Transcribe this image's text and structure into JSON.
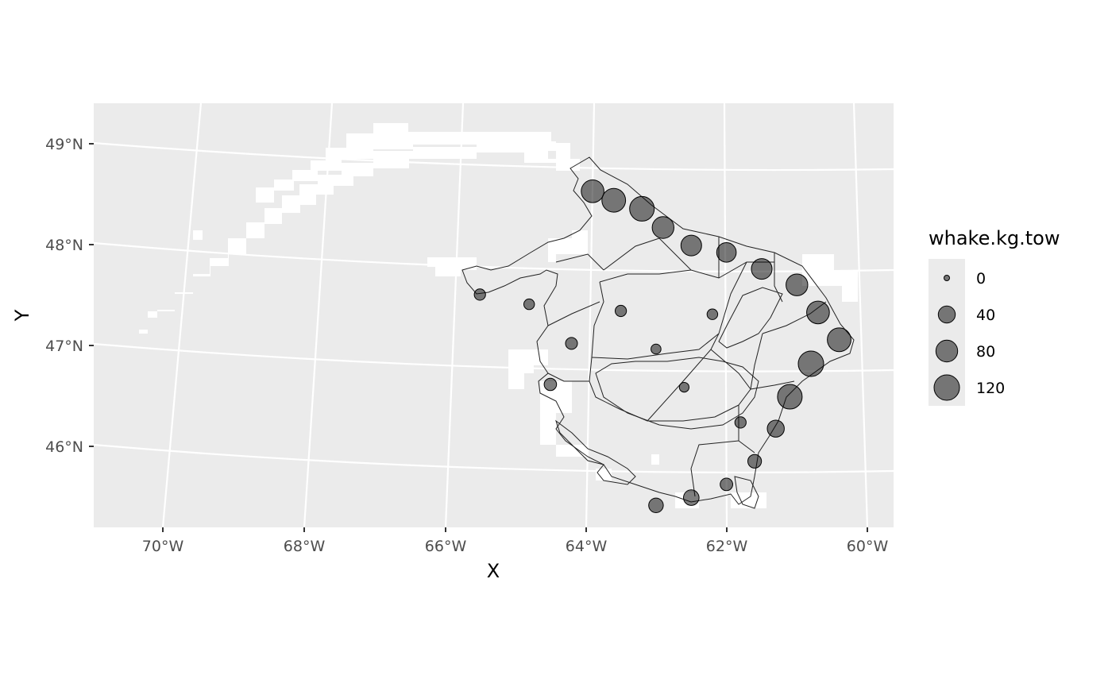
{
  "map": {
    "xlabel": "X",
    "ylabel": "Y",
    "x_ticks": [
      "70°W",
      "68°W",
      "66°W",
      "64°W",
      "62°W",
      "60°W"
    ],
    "y_ticks": [
      "49°N",
      "48°N",
      "47°N",
      "46°N"
    ],
    "lon_range": [
      -71,
      -59.6
    ],
    "lat_range": [
      45.3,
      49.4
    ],
    "panel_background": "#ebebeb",
    "gridline_color": "#ffffff",
    "point_color": "#000000",
    "point_alpha": 0.5
  },
  "legend": {
    "title": "whake.kg.tow",
    "placement": "right",
    "entries": [
      {
        "label": "0",
        "value": 0
      },
      {
        "label": "40",
        "value": 40
      },
      {
        "label": "80",
        "value": 80
      },
      {
        "label": "120",
        "value": 120
      }
    ]
  },
  "chart_data": {
    "type": "scatter",
    "title": "",
    "xlabel": "X",
    "ylabel": "Y",
    "size_variable": "whake.kg.tow",
    "size_breaks": [
      0,
      40,
      80,
      120
    ],
    "xlim": [
      -71,
      -59.6
    ],
    "ylim": [
      45.3,
      49.4
    ],
    "grid": true,
    "legend": "right",
    "points_note_excluded": true,
    "points": [
      {
        "lon": -63.9,
        "lat": 48.8,
        "value": 90
      },
      {
        "lon": -63.6,
        "lat": 48.7,
        "value": 100
      },
      {
        "lon": -63.2,
        "lat": 48.6,
        "value": 110
      },
      {
        "lon": -62.9,
        "lat": 48.4,
        "value": 80
      },
      {
        "lon": -62.5,
        "lat": 48.2,
        "value": 70
      },
      {
        "lon": -62.0,
        "lat": 48.1,
        "value": 60
      },
      {
        "lon": -61.5,
        "lat": 47.9,
        "value": 70
      },
      {
        "lon": -61.0,
        "lat": 47.7,
        "value": 80
      },
      {
        "lon": -60.7,
        "lat": 47.4,
        "value": 90
      },
      {
        "lon": -60.4,
        "lat": 47.1,
        "value": 100
      },
      {
        "lon": -60.8,
        "lat": 46.9,
        "value": 120
      },
      {
        "lon": -61.1,
        "lat": 46.6,
        "value": 110
      },
      {
        "lon": -61.3,
        "lat": 46.3,
        "value": 40
      },
      {
        "lon": -61.6,
        "lat": 46.0,
        "value": 20
      },
      {
        "lon": -62.0,
        "lat": 45.8,
        "value": 15
      },
      {
        "lon": -62.5,
        "lat": 45.7,
        "value": 30
      },
      {
        "lon": -63.0,
        "lat": 45.65,
        "value": 25
      },
      {
        "lon": -63.5,
        "lat": 47.6,
        "value": 10
      },
      {
        "lon": -64.2,
        "lat": 47.3,
        "value": 12
      },
      {
        "lon": -64.8,
        "lat": 47.7,
        "value": 8
      },
      {
        "lon": -65.5,
        "lat": 47.8,
        "value": 10
      },
      {
        "lon": -63.0,
        "lat": 47.2,
        "value": 6
      },
      {
        "lon": -62.6,
        "lat": 46.8,
        "value": 5
      },
      {
        "lon": -62.2,
        "lat": 47.5,
        "value": 8
      },
      {
        "lon": -61.8,
        "lat": 46.4,
        "value": 10
      },
      {
        "lon": -64.5,
        "lat": 46.9,
        "value": 14
      }
    ]
  }
}
